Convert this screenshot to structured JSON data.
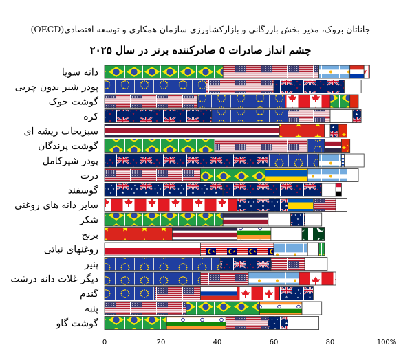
{
  "caption": "جاناتان بروک، مدیر بخش بازرگانی و بازارکشاورزی سازمان همکاری و توسعه اقتصادی(OECD)",
  "chart_data": {
    "type": "bar",
    "orientation": "horizontal",
    "stacked": true,
    "title": "چشم انداز صادرات ۵ صادرکننده برتر در سال ۲۰۲۵",
    "xlabel": "",
    "ylabel": "",
    "xlim": [
      0,
      100
    ],
    "x_ticks": [
      0,
      20,
      40,
      60,
      80,
      100
    ],
    "x_tick_labels": [
      "0",
      "20",
      "40",
      "60",
      "80",
      "100%"
    ],
    "categories": [
      "دانه سویا",
      "پودر شیر بدون چربی",
      "گوشت خوک",
      "کره",
      "سبزیجات ریشه ای",
      "گوشت پرندگان",
      "پودر شیرکامل",
      "ذرت",
      "گوسفند",
      "سایر دانه های روغنی",
      "شکر",
      "برنج",
      "روغنهای نباتی",
      "پنیر",
      "دیگر غلات دانه درشت",
      "گندم",
      "پنبه",
      "گوشت گاو"
    ],
    "segments": [
      [
        {
          "country": "brazil",
          "value": 42
        },
        {
          "country": "usa",
          "value": 34
        },
        {
          "country": "argentina",
          "value": 11
        },
        {
          "country": "paraguay",
          "value": 5
        },
        {
          "country": "canada",
          "value": 2
        }
      ],
      [
        {
          "country": "eu",
          "value": 36
        },
        {
          "country": "usa",
          "value": 24
        },
        {
          "country": "newzealand",
          "value": 25
        },
        {
          "country": "australia",
          "value": 0
        },
        {
          "country": "blank",
          "value": 6
        }
      ],
      [
        {
          "country": "usa",
          "value": 33
        },
        {
          "country": "eu",
          "value": 31
        },
        {
          "country": "canada",
          "value": 16
        },
        {
          "country": "brazil",
          "value": 7
        },
        {
          "country": "china",
          "value": 3
        }
      ],
      [
        {
          "country": "newzealand",
          "value": 38
        },
        {
          "country": "eu",
          "value": 27
        },
        {
          "country": "usa",
          "value": 15
        },
        {
          "country": "blank",
          "value": 8
        },
        {
          "country": "australia",
          "value": 3
        }
      ],
      [
        {
          "country": "thailand",
          "value": 62
        },
        {
          "country": "vietnam",
          "value": 16
        },
        {
          "country": "blank",
          "value": 2
        },
        {
          "country": "australia",
          "value": 3
        },
        {
          "country": "china",
          "value": 3
        }
      ],
      [
        {
          "country": "brazil",
          "value": 39
        },
        {
          "country": "usa",
          "value": 33
        },
        {
          "country": "eu",
          "value": 6
        },
        {
          "country": "thailand",
          "value": 6
        },
        {
          "country": "china",
          "value": 3
        }
      ],
      [
        {
          "country": "newzealand",
          "value": 58
        },
        {
          "country": "eu",
          "value": 18
        },
        {
          "country": "argentina",
          "value": 8
        },
        {
          "country": "uruguay",
          "value": 1
        },
        {
          "country": "blank",
          "value": 7
        }
      ],
      [
        {
          "country": "usa",
          "value": 34
        },
        {
          "country": "brazil",
          "value": 23
        },
        {
          "country": "ukraine",
          "value": 15
        },
        {
          "country": "argentina",
          "value": 14
        },
        {
          "country": "blank",
          "value": 4
        }
      ],
      [
        {
          "country": "australia",
          "value": 42
        },
        {
          "country": "newzealand",
          "value": 35
        },
        {
          "country": "blank",
          "value": 5
        },
        {
          "country": "sudan",
          "value": 2
        },
        {
          "country": "blank",
          "value": 0
        }
      ],
      [
        {
          "country": "canada",
          "value": 47
        },
        {
          "country": "australia",
          "value": 18
        },
        {
          "country": "ukraine",
          "value": 9
        },
        {
          "country": "usa",
          "value": 8
        },
        {
          "country": "blank",
          "value": 4
        }
      ],
      [
        {
          "country": "brazil",
          "value": 42
        },
        {
          "country": "thailand",
          "value": 16
        },
        {
          "country": "blank",
          "value": 8
        },
        {
          "country": "australia",
          "value": 5
        },
        {
          "country": "blank",
          "value": 6
        }
      ],
      [
        {
          "country": "vietnam",
          "value": 24
        },
        {
          "country": "thailand",
          "value": 23
        },
        {
          "country": "india",
          "value": 12
        },
        {
          "country": "blank",
          "value": 11
        },
        {
          "country": "pakistan",
          "value": 8
        }
      ],
      [
        {
          "country": "indonesia",
          "value": 34
        },
        {
          "country": "malaysia",
          "value": 26
        },
        {
          "country": "argentina",
          "value": 12
        },
        {
          "country": "blank",
          "value": 4
        },
        {
          "country": "brazil",
          "value": 2
        }
      ],
      [
        {
          "country": "eu",
          "value": 41
        },
        {
          "country": "newzealand",
          "value": 18
        },
        {
          "country": "usa",
          "value": 12
        },
        {
          "country": "blank",
          "value": 8
        },
        {
          "country": "australia",
          "value": 0
        }
      ],
      [
        {
          "country": "eu",
          "value": 34
        },
        {
          "country": "usa",
          "value": 17
        },
        {
          "country": "argentina",
          "value": 18
        },
        {
          "country": "canada",
          "value": 13
        },
        {
          "country": "australia",
          "value": 0
        }
      ],
      [
        {
          "country": "eu",
          "value": 18
        },
        {
          "country": "usa",
          "value": 16
        },
        {
          "country": "russia",
          "value": 13
        },
        {
          "country": "canada",
          "value": 15
        },
        {
          "country": "australia",
          "value": 12
        }
      ],
      [
        {
          "country": "usa",
          "value": 29
        },
        {
          "country": "brazil",
          "value": 26
        },
        {
          "country": "india",
          "value": 15
        },
        {
          "country": "blank",
          "value": 7
        },
        {
          "country": "australia",
          "value": 0
        }
      ],
      [
        {
          "country": "brazil",
          "value": 22
        },
        {
          "country": "india",
          "value": 21
        },
        {
          "country": "usa",
          "value": 15
        },
        {
          "country": "australia",
          "value": 7
        },
        {
          "country": "blank",
          "value": 11
        }
      ]
    ]
  }
}
